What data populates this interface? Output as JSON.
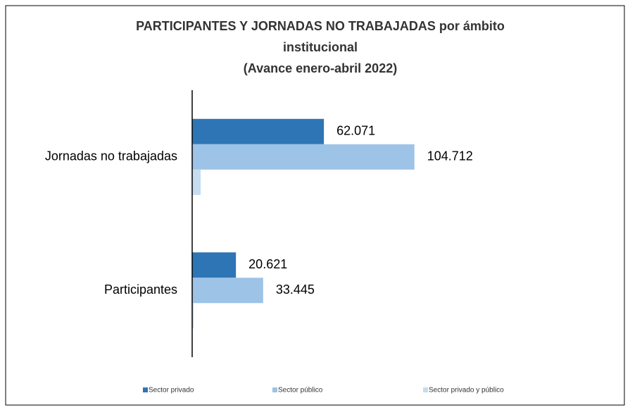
{
  "chart_data": {
    "type": "bar",
    "orientation": "horizontal",
    "title": [
      "PARTICIPANTES  Y JORNADAS NO TRABAJADAS  por ámbito",
      "institucional"
    ],
    "subtitle": "(Avance enero-abril 2022)",
    "categories": [
      "Jornadas no trabajadas",
      "Participantes"
    ],
    "series": [
      {
        "name": "Sector privado",
        "color": "#2e75b6",
        "values": [
          62071,
          20621
        ],
        "value_labels": [
          "62.071",
          "20.621"
        ]
      },
      {
        "name": "Sector público",
        "color": "#9dc3e6",
        "values": [
          104712,
          33445
        ],
        "value_labels": [
          "104.712",
          "33.445"
        ]
      },
      {
        "name": "Sector privado y público",
        "color": "#c6dcf0",
        "values": [
          4000,
          700
        ],
        "value_labels": [
          null,
          null
        ]
      }
    ],
    "xlim": [
      0,
      200000
    ],
    "legend": "bottom"
  }
}
